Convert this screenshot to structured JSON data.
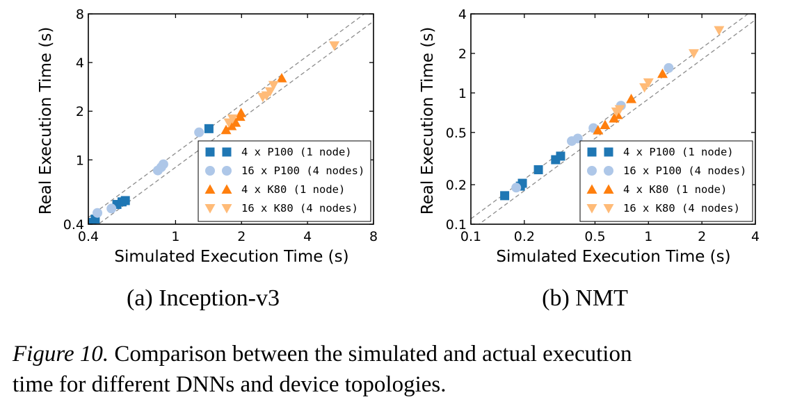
{
  "caption": {
    "label": "Figure 10.",
    "line1": " Comparison between the simulated and actual execution",
    "line2": "time for different DNNs and device topologies."
  },
  "colors": {
    "p100_1node": "#1f77b4",
    "p100_4nodes": "#aec7e8",
    "k80_1node": "#ff7f0e",
    "k80_4nodes": "#ffbb78"
  },
  "chart_data": [
    {
      "type": "scatter",
      "subtitle": "(a) Inception-v3",
      "xlabel": "Simulated Execution Time (s)",
      "ylabel": "Real Execution Time (s)",
      "xscale": "log",
      "yscale": "log",
      "xlim": [
        0.4,
        8
      ],
      "ylim": [
        0.4,
        8
      ],
      "xticks": [
        {
          "v": 0.4,
          "label": "0.4"
        },
        {
          "v": 1,
          "label": "1"
        },
        {
          "v": 2,
          "label": "2"
        },
        {
          "v": 4,
          "label": "4"
        },
        {
          "v": 8,
          "label": "8"
        }
      ],
      "yticks": [
        {
          "v": 0.4,
          "label": "0.4"
        },
        {
          "v": 1,
          "label": "1"
        },
        {
          "v": 2,
          "label": "2"
        },
        {
          "v": 4,
          "label": "4"
        },
        {
          "v": 8,
          "label": "8"
        }
      ],
      "reference_lines": "dashed gray lines at y = 1.1x and y = 0.9x",
      "legend_position": "lower-right",
      "series": [
        {
          "name": "4 x P100 (1 node)",
          "marker": "square",
          "color_key": "p100_1node",
          "points": [
            [
              0.415,
              0.41
            ],
            [
              0.43,
              0.43
            ],
            [
              0.54,
              0.53
            ],
            [
              0.57,
              0.55
            ],
            [
              0.59,
              0.56
            ],
            [
              1.42,
              1.56
            ]
          ]
        },
        {
          "name": "16 x P100 (4 nodes)",
          "marker": "circle",
          "color_key": "p100_4nodes",
          "points": [
            [
              0.44,
              0.47
            ],
            [
              0.51,
              0.5
            ],
            [
              0.83,
              0.86
            ],
            [
              0.86,
              0.9
            ],
            [
              0.88,
              0.94
            ],
            [
              1.28,
              1.48
            ]
          ]
        },
        {
          "name": "4 x K80 (1 node)",
          "marker": "triangle-up",
          "color_key": "k80_1node",
          "points": [
            [
              1.7,
              1.53
            ],
            [
              1.8,
              1.62
            ],
            [
              1.88,
              1.7
            ],
            [
              1.97,
              1.85
            ],
            [
              1.99,
              1.95
            ],
            [
              3.05,
              3.2
            ]
          ]
        },
        {
          "name": "16 x K80 (4 nodes)",
          "marker": "triangle-down",
          "color_key": "k80_4nodes",
          "points": [
            [
              1.75,
              1.7
            ],
            [
              1.82,
              1.8
            ],
            [
              2.5,
              2.45
            ],
            [
              2.6,
              2.5
            ],
            [
              2.7,
              2.65
            ],
            [
              2.8,
              2.9
            ],
            [
              5.3,
              5.1
            ]
          ]
        }
      ]
    },
    {
      "type": "scatter",
      "subtitle": "(b) NMT",
      "xlabel": "Simulated Execution Time (s)",
      "ylabel": "Real Execution Time (s)",
      "xscale": "log",
      "yscale": "log",
      "xlim": [
        0.1,
        4
      ],
      "ylim": [
        0.1,
        4
      ],
      "xticks": [
        {
          "v": 0.1,
          "label": "0.1"
        },
        {
          "v": 0.2,
          "label": "0.2"
        },
        {
          "v": 0.5,
          "label": "0.5"
        },
        {
          "v": 1,
          "label": "1"
        },
        {
          "v": 2,
          "label": "2"
        },
        {
          "v": 4,
          "label": "4"
        }
      ],
      "yticks": [
        {
          "v": 0.1,
          "label": "0.1"
        },
        {
          "v": 0.2,
          "label": "0.2"
        },
        {
          "v": 0.5,
          "label": "0.5"
        },
        {
          "v": 1,
          "label": "1"
        },
        {
          "v": 2,
          "label": "2"
        },
        {
          "v": 4,
          "label": "4"
        }
      ],
      "reference_lines": "dashed gray lines at y = 1.1x and y = 0.9x",
      "legend_position": "lower-right",
      "series": [
        {
          "name": "4 x P100 (1 node)",
          "marker": "square",
          "color_key": "p100_1node",
          "points": [
            [
              0.155,
              0.165
            ],
            [
              0.19,
              0.195
            ],
            [
              0.195,
              0.205
            ],
            [
              0.24,
              0.26
            ],
            [
              0.3,
              0.31
            ],
            [
              0.32,
              0.33
            ]
          ]
        },
        {
          "name": "16 x P100 (4 nodes)",
          "marker": "circle",
          "color_key": "p100_4nodes",
          "points": [
            [
              0.18,
              0.19
            ],
            [
              0.37,
              0.43
            ],
            [
              0.4,
              0.45
            ],
            [
              0.49,
              0.54
            ],
            [
              0.7,
              0.8
            ],
            [
              1.3,
              1.55
            ]
          ]
        },
        {
          "name": "4 x K80 (1 node)",
          "marker": "triangle-up",
          "color_key": "k80_1node",
          "points": [
            [
              0.52,
              0.52
            ],
            [
              0.57,
              0.57
            ],
            [
              0.64,
              0.64
            ],
            [
              0.67,
              0.68
            ],
            [
              0.8,
              0.9
            ],
            [
              1.2,
              1.4
            ]
          ]
        },
        {
          "name": "16 x K80 (4 nodes)",
          "marker": "triangle-down",
          "color_key": "k80_4nodes",
          "points": [
            [
              0.66,
              0.72
            ],
            [
              0.69,
              0.75
            ],
            [
              0.95,
              1.1
            ],
            [
              1.0,
              1.2
            ],
            [
              1.8,
              2.0
            ],
            [
              2.5,
              3.0
            ]
          ]
        }
      ]
    }
  ]
}
